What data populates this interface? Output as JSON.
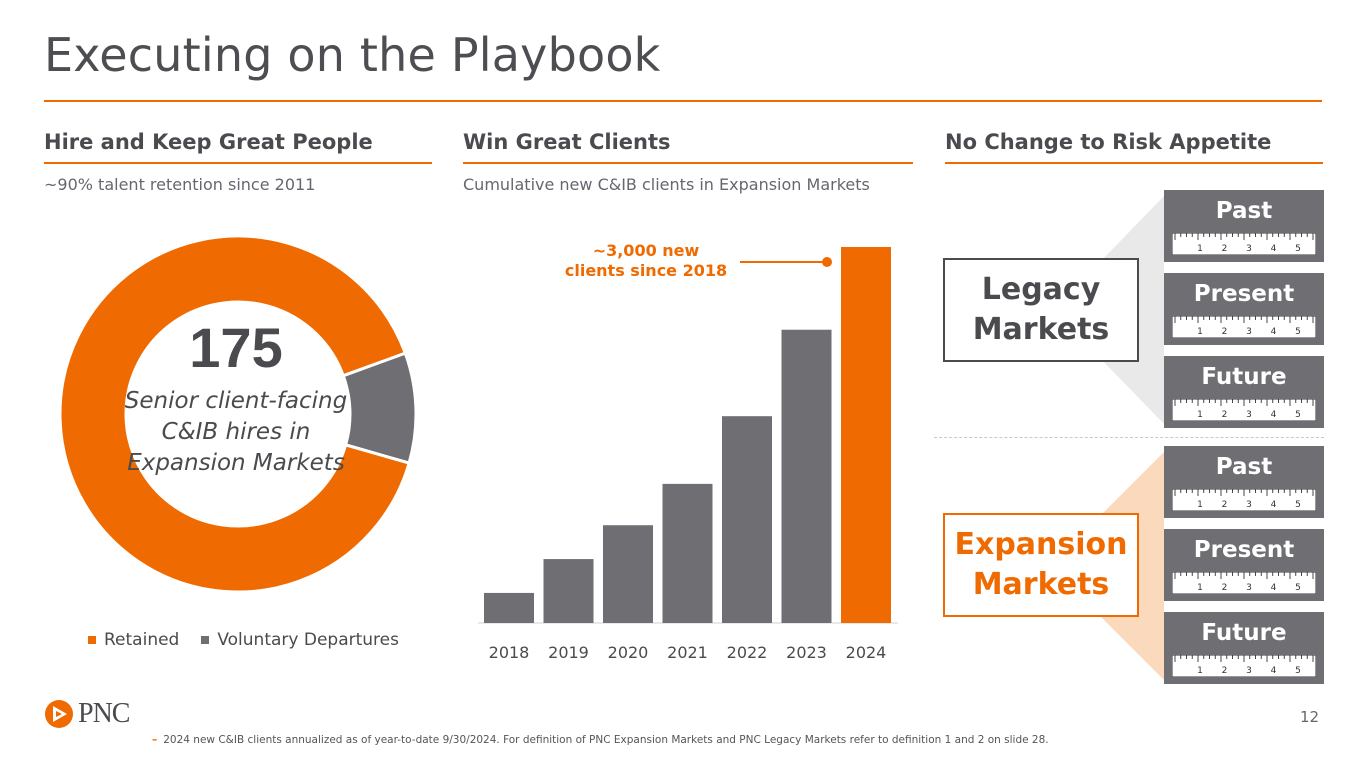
{
  "slide": {
    "title": "Executing on the Playbook",
    "page_number": "12",
    "logo_text": "PNC",
    "footnote_marker": "–",
    "footnote": "2024 new C&IB clients annualized as of year-to-date 9/30/2024. For definition of PNC Expansion Markets and PNC Legacy Markets refer to definition 1 and 2 on slide 28."
  },
  "colors": {
    "orange": "#ef6a00",
    "gray": "#6e6e73",
    "dark": "#4a4a4f"
  },
  "columns": {
    "people": {
      "heading": "Hire and Keep Great People",
      "subtitle": "~90% talent retention since 2011"
    },
    "clients": {
      "heading": "Win Great Clients",
      "subtitle": "Cumulative new C&IB clients in Expansion Markets"
    },
    "risk": {
      "heading": "No Change to Risk Appetite"
    }
  },
  "donut": {
    "number": "175",
    "description": "Senior client-facing C&IB hires in Expansion Markets"
  },
  "risk": {
    "legacy_label": "Legacy Markets",
    "expansion_label": "Expansion Markets",
    "legacy_cards": [
      "Past",
      "Present",
      "Future"
    ],
    "expansion_cards": [
      "Past",
      "Present",
      "Future"
    ],
    "ruler_numbers": [
      "1",
      "2",
      "3",
      "4",
      "5"
    ]
  },
  "chart_data": [
    {
      "type": "pie",
      "style": "donut",
      "total_label": "175",
      "categories": [
        "Retained",
        "Voluntary Departures"
      ],
      "values": [
        90,
        10
      ],
      "unit": "percent (approx.)",
      "legend": [
        "Retained",
        "Voluntary Departures"
      ],
      "legend_position": "bottom",
      "colors": [
        "#ef6a00",
        "#6e6e73"
      ]
    },
    {
      "type": "bar",
      "title": "Cumulative new C&IB clients in Expansion Markets",
      "categories": [
        "2018",
        "2019",
        "2020",
        "2021",
        "2022",
        "2023",
        "2024"
      ],
      "values": [
        8,
        17,
        26,
        37,
        55,
        78,
        100
      ],
      "unit": "relative index (unlabeled)",
      "highlight_index": 6,
      "annotation": "~3,000 new clients since 2018",
      "grid": false,
      "colors": [
        "#6e6e73",
        "#ef6a00"
      ]
    }
  ]
}
